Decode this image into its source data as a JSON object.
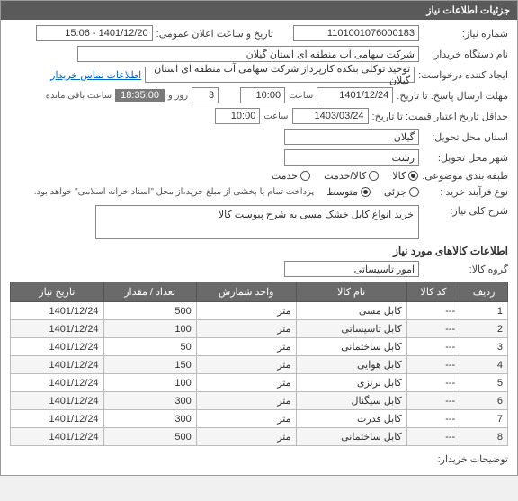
{
  "header": {
    "title": "جزئیات اطلاعات نیاز"
  },
  "fields": {
    "need_number_label": "شماره نیاز:",
    "need_number": "1101001076000183",
    "announce_label": "تاریخ و ساعت اعلان عمومی:",
    "announce": "1401/12/20 - 15:06",
    "buyer_label": "نام دستگاه خریدار:",
    "buyer": "شرکت سهامی آب منطقه ای استان گیلان",
    "requester_label": "ایجاد کننده درخواست:",
    "requester": "توحید توکلی بنکده کارپرداز شرکت سهامی آب منطقه ای استان گیلان",
    "contact_link": "اطلاعات تماس خریدار",
    "deadline_label": "مهلت ارسال پاسخ: تا تاریخ:",
    "deadline_date": "1401/12/24",
    "time_label": "ساعت",
    "deadline_time": "10:00",
    "days": "3",
    "day_and": "روز و",
    "remaining_time": "18:35:00",
    "remaining_label": "ساعت باقی مانده",
    "validity_label": "حداقل تاریخ اعتبار قیمت: تا تاریخ:",
    "validity_date": "1403/03/24",
    "validity_time": "10:00",
    "province_label": "استان محل تحویل:",
    "province": "گیلان",
    "city_label": "شهر محل تحویل:",
    "city": "رشت",
    "category_label": "طبقه بندی موضوعی:",
    "cat_goods": "کالا",
    "cat_service": "کالا/خدمت",
    "cat_serv": "خدمت",
    "process_label": "نوع فرآیند خرید :",
    "proc_small": "جزئی",
    "proc_med": "متوسط",
    "proc_note": "پرداخت تمام یا بخشی از مبلغ خرید،از محل \"اسناد خزانه اسلامی\" خواهد بود.",
    "desc_label": "شرح کلی نیاز:",
    "desc": "خرید انواع کابل خشک مسی به شرح پیوست کالا",
    "section_title": "اطلاعات کالاهای مورد نیاز",
    "group_label": "گروه کالا:",
    "group": "امور تاسیساتی",
    "buyer_notes_label": "توضیحات خریدار:"
  },
  "table": {
    "headers": [
      "ردیف",
      "کد کالا",
      "نام کالا",
      "واحد شمارش",
      "تعداد / مقدار",
      "تاریخ نیاز"
    ],
    "rows": [
      [
        "1",
        "---",
        "کابل مسی",
        "متر",
        "500",
        "1401/12/24"
      ],
      [
        "2",
        "---",
        "کابل تاسیساتی",
        "متر",
        "100",
        "1401/12/24"
      ],
      [
        "3",
        "---",
        "کابل ساختمانی",
        "متر",
        "50",
        "1401/12/24"
      ],
      [
        "4",
        "---",
        "کابل هوایی",
        "متر",
        "150",
        "1401/12/24"
      ],
      [
        "5",
        "---",
        "کابل برنزی",
        "متر",
        "100",
        "1401/12/24"
      ],
      [
        "6",
        "---",
        "کابل سیگنال",
        "متر",
        "300",
        "1401/12/24"
      ],
      [
        "7",
        "---",
        "کابل قدرت",
        "متر",
        "300",
        "1401/12/24"
      ],
      [
        "8",
        "---",
        "کابل ساختمانی",
        "متر",
        "500",
        "1401/12/24"
      ]
    ]
  }
}
